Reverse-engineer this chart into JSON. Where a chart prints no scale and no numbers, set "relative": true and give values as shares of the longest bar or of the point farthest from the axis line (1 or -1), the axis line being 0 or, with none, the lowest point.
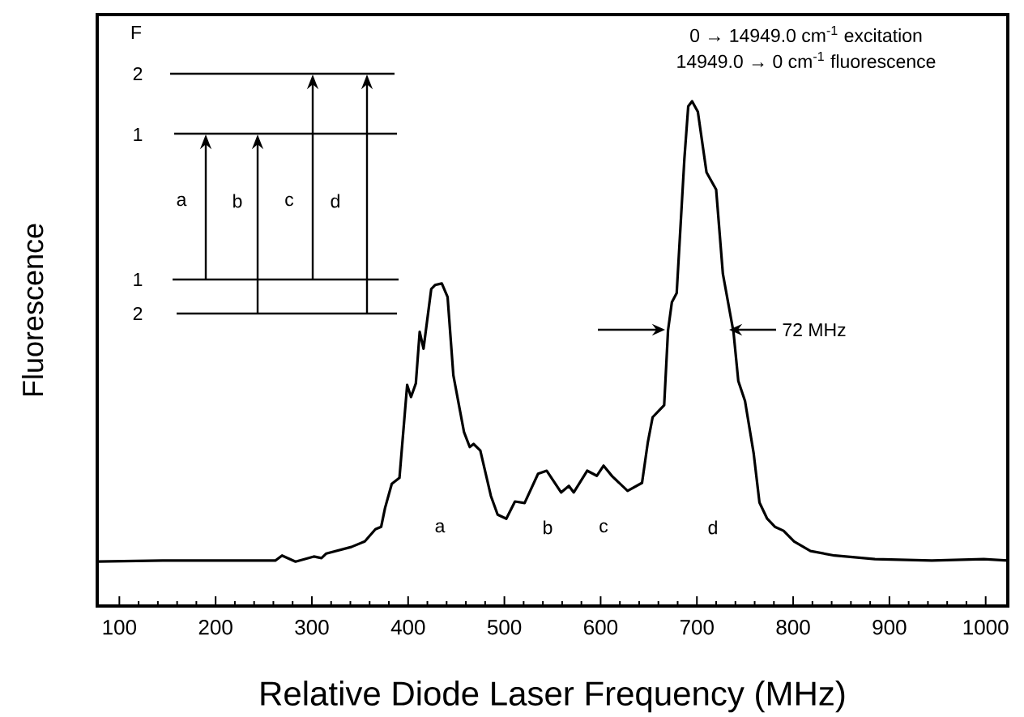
{
  "chart_data": {
    "type": "line",
    "relative": true,
    "color": "#000000",
    "line_style": "solid",
    "tick_labels": "x",
    "xlabel": "Relative Diode Laser Frequency (MHz)",
    "ylabel": "Fluorescence",
    "xlim": [
      77,
      1023
    ],
    "xticks": [
      100,
      200,
      300,
      400,
      500,
      600,
      700,
      800,
      900,
      1000
    ],
    "x": [
      77,
      145,
      229,
      262,
      269,
      283,
      302,
      310,
      315,
      341,
      355,
      366,
      372,
      376,
      383,
      391,
      399,
      403,
      408,
      412,
      416,
      424,
      428,
      435,
      441,
      447,
      458,
      464,
      468,
      475,
      486,
      493,
      502,
      511,
      521,
      535,
      544,
      559,
      567,
      572,
      586,
      596,
      603,
      612,
      628,
      643,
      649,
      654,
      666,
      670,
      674,
      679,
      687,
      691,
      695,
      701,
      710,
      720,
      727,
      738,
      743,
      750,
      759,
      765,
      773,
      781,
      790,
      801,
      818,
      843,
      885,
      944,
      998,
      1023
    ],
    "values": [
      0.088,
      0.09,
      0.09,
      0.09,
      0.1,
      0.088,
      0.098,
      0.095,
      0.104,
      0.117,
      0.128,
      0.152,
      0.157,
      0.194,
      0.242,
      0.254,
      0.438,
      0.414,
      0.441,
      0.543,
      0.51,
      0.628,
      0.636,
      0.639,
      0.612,
      0.457,
      0.345,
      0.315,
      0.321,
      0.308,
      0.218,
      0.181,
      0.173,
      0.207,
      0.204,
      0.262,
      0.268,
      0.225,
      0.238,
      0.225,
      0.268,
      0.258,
      0.278,
      0.257,
      0.228,
      0.244,
      0.324,
      0.374,
      0.398,
      0.546,
      0.602,
      0.62,
      0.886,
      0.99,
      1.0,
      0.979,
      0.859,
      0.825,
      0.658,
      0.543,
      0.446,
      0.406,
      0.302,
      0.205,
      0.173,
      0.157,
      0.149,
      0.128,
      0.109,
      0.1,
      0.093,
      0.09,
      0.093,
      0.09
    ],
    "annotations": [
      "0 → 14949.0 cm$^{-1}$ excitation",
      "14949.0 → 0 cm$^{-1}$ fluorescence",
      "72 MHz",
      "a",
      "b",
      "c",
      "d",
      "F",
      "2",
      "1",
      "1",
      "2",
      "a",
      "b",
      "c",
      "d"
    ]
  }
}
